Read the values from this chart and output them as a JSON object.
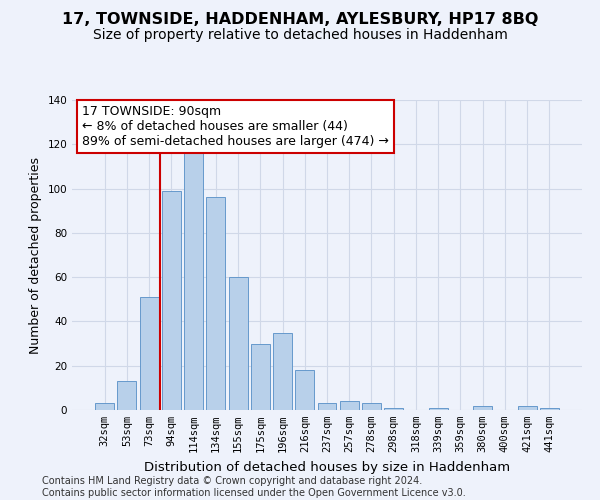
{
  "title": "17, TOWNSIDE, HADDENHAM, AYLESBURY, HP17 8BQ",
  "subtitle": "Size of property relative to detached houses in Haddenham",
  "xlabel": "Distribution of detached houses by size in Haddenham",
  "ylabel": "Number of detached properties",
  "categories": [
    "32sqm",
    "53sqm",
    "73sqm",
    "94sqm",
    "114sqm",
    "134sqm",
    "155sqm",
    "175sqm",
    "196sqm",
    "216sqm",
    "237sqm",
    "257sqm",
    "278sqm",
    "298sqm",
    "318sqm",
    "339sqm",
    "359sqm",
    "380sqm",
    "400sqm",
    "421sqm",
    "441sqm"
  ],
  "values": [
    3,
    13,
    51,
    99,
    116,
    96,
    60,
    30,
    35,
    18,
    3,
    4,
    3,
    1,
    0,
    1,
    0,
    2,
    0,
    2,
    1
  ],
  "bar_color": "#b8d0ea",
  "bar_edge_color": "#6699cc",
  "grid_color": "#d0d8e8",
  "background_color": "#eef2fb",
  "vline_x_index": 3,
  "vline_color": "#cc0000",
  "annotation_text": "17 TOWNSIDE: 90sqm\n← 8% of detached houses are smaller (44)\n89% of semi-detached houses are larger (474) →",
  "annotation_box_color": "#ffffff",
  "annotation_box_edge": "#cc0000",
  "ylim": [
    0,
    140
  ],
  "yticks": [
    0,
    20,
    40,
    60,
    80,
    100,
    120,
    140
  ],
  "footer": "Contains HM Land Registry data © Crown copyright and database right 2024.\nContains public sector information licensed under the Open Government Licence v3.0.",
  "title_fontsize": 11.5,
  "subtitle_fontsize": 10,
  "xlabel_fontsize": 9.5,
  "ylabel_fontsize": 9,
  "tick_fontsize": 7.5,
  "annotation_fontsize": 9,
  "footer_fontsize": 7
}
